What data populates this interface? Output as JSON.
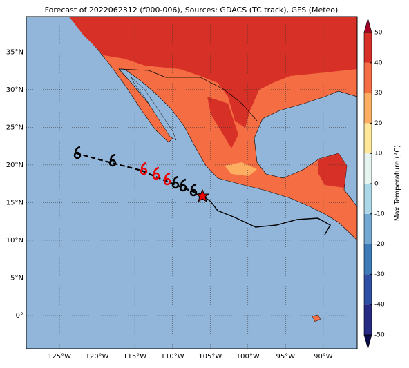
{
  "title": "Forecast of 2022062312 (f000-006), Sources: GDACS (TC track), GFS (Meteo)",
  "map": {
    "lonlim": [
      -129.4,
      -85.5
    ],
    "latlim": [
      -4.4,
      39.7
    ],
    "lon_ticks": [
      {
        "value": -125,
        "label": "125°W"
      },
      {
        "value": -120,
        "label": "120°W"
      },
      {
        "value": -115,
        "label": "115°W"
      },
      {
        "value": -110,
        "label": "110°W"
      },
      {
        "value": -105,
        "label": "105°W"
      },
      {
        "value": -100,
        "label": "100°W"
      },
      {
        "value": -95,
        "label": "95°W"
      },
      {
        "value": -90,
        "label": "90°W"
      }
    ],
    "lat_ticks": [
      {
        "value": 0,
        "label": "0°"
      },
      {
        "value": 5,
        "label": "5°N"
      },
      {
        "value": 10,
        "label": "10°N"
      },
      {
        "value": 15,
        "label": "15°N"
      },
      {
        "value": 20,
        "label": "20°N"
      },
      {
        "value": 25,
        "label": "25°N"
      },
      {
        "value": 30,
        "label": "30°N"
      },
      {
        "value": 35,
        "label": "35°N"
      }
    ],
    "grid": true
  },
  "colorbar": {
    "label": "Max Temperature (°C)",
    "lim": [
      -50,
      50
    ],
    "ticks": [
      -50,
      -40,
      -30,
      -20,
      -10,
      0,
      10,
      20,
      30,
      40,
      50
    ],
    "colors": [
      "#262a85",
      "#2f4fa2",
      "#3d7ab8",
      "#72a8d2",
      "#abd7e8",
      "#e6f4f1",
      "#fee79a",
      "#fdae61",
      "#f46d43",
      "#d73027"
    ],
    "under_color": "#0b0b4a",
    "over_color": "#a50026"
  }
}
